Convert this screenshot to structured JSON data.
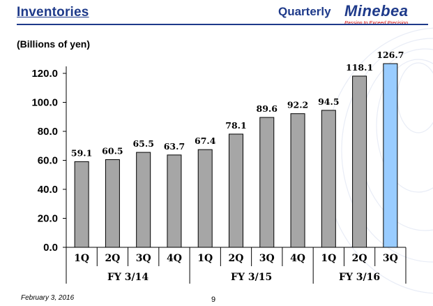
{
  "header": {
    "title": "Inventories",
    "period": "Quarterly",
    "brand_name": "Minebea",
    "brand_tagline": "Passion to Exceed Precision"
  },
  "footer": {
    "date": "February 3, 2016",
    "page": "9"
  },
  "colors": {
    "brand": "#1e3a8a",
    "tagline": "#cc0000",
    "bar": "#a6a6a6",
    "bar_highlight": "#99ccff"
  },
  "chart_data": {
    "type": "bar",
    "unit_label": "(Billions of yen)",
    "groups": [
      {
        "label": "FY 3/14",
        "quarters": [
          "1Q",
          "2Q",
          "3Q",
          "4Q"
        ]
      },
      {
        "label": "FY 3/15",
        "quarters": [
          "1Q",
          "2Q",
          "3Q",
          "4Q"
        ]
      },
      {
        "label": "FY 3/16",
        "quarters": [
          "1Q",
          "2Q",
          "3Q"
        ]
      }
    ],
    "values": [
      59.1,
      60.5,
      65.5,
      63.7,
      67.4,
      78.1,
      89.6,
      92.2,
      94.5,
      118.1,
      126.7
    ],
    "value_labels": [
      "59.1",
      "60.5",
      "65.5",
      "63.7",
      "67.4",
      "78.1",
      "89.6",
      "92.2",
      "94.5",
      "118.1",
      "126.7"
    ],
    "highlight_index": 10,
    "ylim": [
      0,
      130
    ],
    "yticks": [
      0,
      20,
      40,
      60,
      80,
      100,
      120
    ],
    "ytick_labels": [
      "0.0",
      "20.0",
      "40.0",
      "60.0",
      "80.0",
      "100.0",
      "120.0"
    ],
    "grid": false,
    "legend": "none"
  }
}
